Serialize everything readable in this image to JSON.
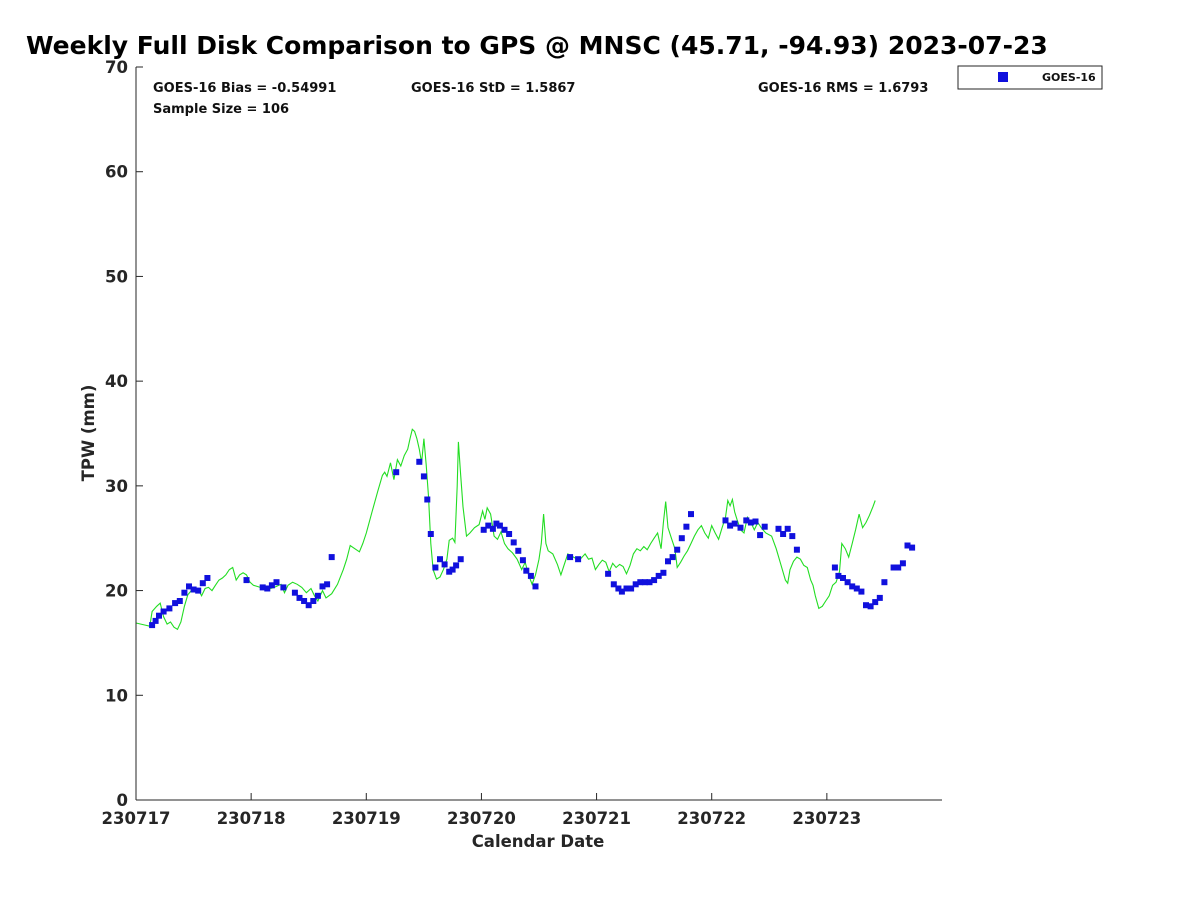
{
  "chart_data": {
    "type": "scatter",
    "title": "Weekly Full Disk Comparison to GPS @ MNSC (45.71, -94.93) 2023-07-23",
    "xlabel": "Calendar Date",
    "ylabel": "TPW (mm)",
    "xlim": [
      0,
      7
    ],
    "ylim": [
      0,
      70
    ],
    "yticks": [
      0,
      10,
      20,
      30,
      40,
      50,
      60,
      70
    ],
    "xtick_labels": [
      "230717",
      "230718",
      "230719",
      "230720",
      "230721",
      "230722",
      "230723"
    ],
    "stats": {
      "bias": "GOES-16 Bias = -0.54991",
      "std": "GOES-16 StD = 1.5867",
      "rms": "GOES-16 RMS = 1.6793",
      "sample": "Sample Size = 106"
    },
    "legend": {
      "label": "GOES-16",
      "position": "outside top-right"
    },
    "colors": {
      "goes": "#1010dd",
      "gps": "#22dd22",
      "axis": "#262626"
    },
    "series": [
      {
        "name": "GPS",
        "style": "line",
        "color": "#22dd22",
        "points": [
          [
            0.0,
            16.9
          ],
          [
            0.08,
            16.7
          ],
          [
            0.12,
            16.6
          ],
          [
            0.14,
            18.0
          ],
          [
            0.18,
            18.5
          ],
          [
            0.21,
            18.8
          ],
          [
            0.24,
            17.5
          ],
          [
            0.27,
            16.8
          ],
          [
            0.3,
            17.0
          ],
          [
            0.33,
            16.5
          ],
          [
            0.36,
            16.3
          ],
          [
            0.39,
            17.0
          ],
          [
            0.42,
            18.5
          ],
          [
            0.45,
            19.6
          ],
          [
            0.48,
            20.0
          ],
          [
            0.51,
            20.3
          ],
          [
            0.54,
            20.1
          ],
          [
            0.57,
            19.5
          ],
          [
            0.6,
            20.2
          ],
          [
            0.63,
            20.3
          ],
          [
            0.66,
            20.0
          ],
          [
            0.69,
            20.5
          ],
          [
            0.72,
            21.0
          ],
          [
            0.75,
            21.2
          ],
          [
            0.78,
            21.5
          ],
          [
            0.81,
            22.0
          ],
          [
            0.84,
            22.2
          ],
          [
            0.87,
            21.0
          ],
          [
            0.9,
            21.5
          ],
          [
            0.93,
            21.7
          ],
          [
            0.96,
            21.5
          ],
          [
            0.99,
            20.8
          ],
          [
            1.02,
            20.5
          ],
          [
            1.08,
            20.3
          ],
          [
            1.14,
            20.1
          ],
          [
            1.2,
            20.3
          ],
          [
            1.26,
            20.6
          ],
          [
            1.29,
            19.8
          ],
          [
            1.32,
            20.5
          ],
          [
            1.36,
            20.8
          ],
          [
            1.4,
            20.6
          ],
          [
            1.44,
            20.3
          ],
          [
            1.48,
            19.8
          ],
          [
            1.52,
            20.2
          ],
          [
            1.55,
            19.5
          ],
          [
            1.58,
            19.0
          ],
          [
            1.62,
            20.0
          ],
          [
            1.65,
            19.3
          ],
          [
            1.7,
            19.7
          ],
          [
            1.75,
            20.6
          ],
          [
            1.8,
            22.0
          ],
          [
            1.83,
            23.0
          ],
          [
            1.86,
            24.3
          ],
          [
            1.9,
            24.0
          ],
          [
            1.94,
            23.7
          ],
          [
            1.97,
            24.5
          ],
          [
            2.0,
            25.5
          ],
          [
            2.05,
            27.5
          ],
          [
            2.1,
            29.5
          ],
          [
            2.14,
            31.0
          ],
          [
            2.16,
            31.3
          ],
          [
            2.18,
            30.9
          ],
          [
            2.21,
            32.2
          ],
          [
            2.24,
            30.6
          ],
          [
            2.27,
            32.5
          ],
          [
            2.3,
            31.9
          ],
          [
            2.33,
            32.9
          ],
          [
            2.36,
            33.5
          ],
          [
            2.38,
            34.5
          ],
          [
            2.4,
            35.4
          ],
          [
            2.42,
            35.2
          ],
          [
            2.44,
            34.5
          ],
          [
            2.46,
            33.5
          ],
          [
            2.48,
            32.2
          ],
          [
            2.5,
            34.5
          ],
          [
            2.52,
            32.0
          ],
          [
            2.54,
            29.0
          ],
          [
            2.56,
            24.5
          ],
          [
            2.58,
            22.0
          ],
          [
            2.61,
            21.1
          ],
          [
            2.64,
            21.3
          ],
          [
            2.67,
            22.0
          ],
          [
            2.7,
            23.0
          ],
          [
            2.72,
            24.8
          ],
          [
            2.75,
            25.0
          ],
          [
            2.77,
            24.6
          ],
          [
            2.79,
            30.0
          ],
          [
            2.8,
            34.2
          ],
          [
            2.82,
            31.0
          ],
          [
            2.84,
            28.0
          ],
          [
            2.87,
            25.2
          ],
          [
            2.9,
            25.5
          ],
          [
            2.94,
            26.0
          ],
          [
            2.98,
            26.3
          ],
          [
            3.01,
            27.6
          ],
          [
            3.03,
            26.8
          ],
          [
            3.05,
            27.9
          ],
          [
            3.08,
            27.3
          ],
          [
            3.11,
            25.2
          ],
          [
            3.14,
            24.9
          ],
          [
            3.17,
            25.6
          ],
          [
            3.2,
            24.5
          ],
          [
            3.23,
            24.0
          ],
          [
            3.27,
            23.6
          ],
          [
            3.31,
            23.0
          ],
          [
            3.35,
            22.0
          ],
          [
            3.38,
            22.7
          ],
          [
            3.41,
            21.5
          ],
          [
            3.44,
            20.6
          ],
          [
            3.47,
            21.5
          ],
          [
            3.5,
            23.0
          ],
          [
            3.52,
            24.5
          ],
          [
            3.54,
            27.3
          ],
          [
            3.56,
            24.5
          ],
          [
            3.58,
            23.8
          ],
          [
            3.62,
            23.5
          ],
          [
            3.66,
            22.5
          ],
          [
            3.69,
            21.5
          ],
          [
            3.72,
            22.5
          ],
          [
            3.75,
            23.5
          ],
          [
            3.8,
            23.2
          ],
          [
            3.85,
            22.9
          ],
          [
            3.9,
            23.5
          ],
          [
            3.93,
            23.0
          ],
          [
            3.96,
            23.1
          ],
          [
            3.99,
            22.0
          ],
          [
            4.02,
            22.5
          ],
          [
            4.05,
            22.9
          ],
          [
            4.08,
            22.7
          ],
          [
            4.11,
            21.8
          ],
          [
            4.14,
            22.6
          ],
          [
            4.17,
            22.2
          ],
          [
            4.2,
            22.5
          ],
          [
            4.23,
            22.3
          ],
          [
            4.26,
            21.6
          ],
          [
            4.29,
            22.4
          ],
          [
            4.32,
            23.5
          ],
          [
            4.35,
            24.0
          ],
          [
            4.38,
            23.8
          ],
          [
            4.41,
            24.2
          ],
          [
            4.44,
            23.9
          ],
          [
            4.47,
            24.5
          ],
          [
            4.5,
            25.0
          ],
          [
            4.53,
            25.5
          ],
          [
            4.56,
            24.0
          ],
          [
            4.58,
            26.5
          ],
          [
            4.6,
            28.5
          ],
          [
            4.62,
            26.0
          ],
          [
            4.65,
            25.0
          ],
          [
            4.68,
            24.0
          ],
          [
            4.7,
            22.2
          ],
          [
            4.73,
            22.7
          ],
          [
            4.76,
            23.3
          ],
          [
            4.79,
            23.8
          ],
          [
            4.82,
            24.5
          ],
          [
            4.85,
            25.2
          ],
          [
            4.88,
            25.8
          ],
          [
            4.91,
            26.2
          ],
          [
            4.94,
            25.5
          ],
          [
            4.97,
            25.0
          ],
          [
            5.0,
            26.2
          ],
          [
            5.03,
            25.5
          ],
          [
            5.06,
            24.9
          ],
          [
            5.09,
            26.0
          ],
          [
            5.12,
            27.0
          ],
          [
            5.14,
            28.6
          ],
          [
            5.16,
            28.1
          ],
          [
            5.18,
            28.7
          ],
          [
            5.2,
            27.5
          ],
          [
            5.22,
            26.8
          ],
          [
            5.25,
            25.8
          ],
          [
            5.28,
            25.5
          ],
          [
            5.31,
            27.0
          ],
          [
            5.34,
            26.5
          ],
          [
            5.37,
            25.8
          ],
          [
            5.4,
            26.5
          ],
          [
            5.43,
            26.0
          ],
          [
            5.47,
            25.5
          ],
          [
            5.52,
            25.2
          ],
          [
            5.56,
            24.0
          ],
          [
            5.6,
            22.5
          ],
          [
            5.64,
            21.0
          ],
          [
            5.66,
            20.7
          ],
          [
            5.68,
            22.0
          ],
          [
            5.71,
            22.8
          ],
          [
            5.74,
            23.2
          ],
          [
            5.77,
            23.0
          ],
          [
            5.8,
            22.4
          ],
          [
            5.83,
            22.2
          ],
          [
            5.86,
            21.0
          ],
          [
            5.88,
            20.5
          ],
          [
            5.9,
            19.5
          ],
          [
            5.93,
            18.3
          ],
          [
            5.96,
            18.5
          ],
          [
            5.99,
            19.0
          ],
          [
            6.02,
            19.5
          ],
          [
            6.05,
            20.5
          ],
          [
            6.08,
            20.8
          ],
          [
            6.11,
            21.8
          ],
          [
            6.13,
            24.5
          ],
          [
            6.16,
            24.0
          ],
          [
            6.19,
            23.2
          ],
          [
            6.22,
            24.5
          ],
          [
            6.25,
            25.8
          ],
          [
            6.28,
            27.3
          ],
          [
            6.31,
            26.0
          ],
          [
            6.34,
            26.5
          ],
          [
            6.37,
            27.2
          ],
          [
            6.4,
            28.0
          ],
          [
            6.42,
            28.6
          ]
        ]
      },
      {
        "name": "GOES-16",
        "style": "marker-square",
        "color": "#1010dd",
        "points": [
          [
            0.14,
            16.7
          ],
          [
            0.17,
            17.1
          ],
          [
            0.2,
            17.6
          ],
          [
            0.24,
            18.0
          ],
          [
            0.29,
            18.3
          ],
          [
            0.34,
            18.8
          ],
          [
            0.38,
            19.0
          ],
          [
            0.42,
            19.8
          ],
          [
            0.46,
            20.4
          ],
          [
            0.5,
            20.1
          ],
          [
            0.54,
            20.0
          ],
          [
            0.58,
            20.7
          ],
          [
            0.62,
            21.2
          ],
          [
            0.96,
            21.0
          ],
          [
            1.1,
            20.3
          ],
          [
            1.14,
            20.2
          ],
          [
            1.18,
            20.5
          ],
          [
            1.22,
            20.8
          ],
          [
            1.28,
            20.3
          ],
          [
            1.38,
            19.8
          ],
          [
            1.42,
            19.3
          ],
          [
            1.46,
            19.0
          ],
          [
            1.5,
            18.6
          ],
          [
            1.54,
            19.0
          ],
          [
            1.58,
            19.5
          ],
          [
            1.62,
            20.4
          ],
          [
            1.66,
            20.6
          ],
          [
            1.7,
            23.2
          ],
          [
            2.26,
            31.3
          ],
          [
            2.46,
            32.3
          ],
          [
            2.5,
            30.9
          ],
          [
            2.53,
            28.7
          ],
          [
            2.56,
            25.4
          ],
          [
            2.6,
            22.2
          ],
          [
            2.64,
            23.0
          ],
          [
            2.68,
            22.5
          ],
          [
            2.72,
            21.8
          ],
          [
            2.75,
            22.0
          ],
          [
            2.78,
            22.4
          ],
          [
            2.82,
            23.0
          ],
          [
            3.02,
            25.8
          ],
          [
            3.06,
            26.2
          ],
          [
            3.1,
            25.9
          ],
          [
            3.13,
            26.4
          ],
          [
            3.16,
            26.2
          ],
          [
            3.2,
            25.8
          ],
          [
            3.24,
            25.4
          ],
          [
            3.28,
            24.6
          ],
          [
            3.32,
            23.8
          ],
          [
            3.36,
            22.9
          ],
          [
            3.39,
            21.9
          ],
          [
            3.43,
            21.4
          ],
          [
            3.47,
            20.4
          ],
          [
            3.77,
            23.2
          ],
          [
            3.84,
            23.0
          ],
          [
            4.1,
            21.6
          ],
          [
            4.15,
            20.6
          ],
          [
            4.19,
            20.2
          ],
          [
            4.22,
            19.9
          ],
          [
            4.26,
            20.2
          ],
          [
            4.3,
            20.2
          ],
          [
            4.34,
            20.6
          ],
          [
            4.38,
            20.8
          ],
          [
            4.42,
            20.8
          ],
          [
            4.46,
            20.8
          ],
          [
            4.5,
            21.0
          ],
          [
            4.54,
            21.4
          ],
          [
            4.58,
            21.7
          ],
          [
            4.62,
            22.8
          ],
          [
            4.66,
            23.2
          ],
          [
            4.7,
            23.9
          ],
          [
            4.74,
            25.0
          ],
          [
            4.78,
            26.1
          ],
          [
            4.82,
            27.3
          ],
          [
            5.12,
            26.7
          ],
          [
            5.16,
            26.2
          ],
          [
            5.2,
            26.4
          ],
          [
            5.25,
            26.0
          ],
          [
            5.3,
            26.7
          ],
          [
            5.34,
            26.5
          ],
          [
            5.38,
            26.6
          ],
          [
            5.42,
            25.3
          ],
          [
            5.46,
            26.1
          ],
          [
            5.58,
            25.9
          ],
          [
            5.62,
            25.4
          ],
          [
            5.66,
            25.9
          ],
          [
            5.7,
            25.2
          ],
          [
            5.74,
            23.9
          ],
          [
            6.07,
            22.2
          ],
          [
            6.1,
            21.4
          ],
          [
            6.14,
            21.2
          ],
          [
            6.18,
            20.8
          ],
          [
            6.22,
            20.4
          ],
          [
            6.26,
            20.2
          ],
          [
            6.3,
            19.9
          ],
          [
            6.34,
            18.6
          ],
          [
            6.38,
            18.5
          ],
          [
            6.42,
            18.9
          ],
          [
            6.46,
            19.3
          ],
          [
            6.5,
            20.8
          ],
          [
            6.58,
            22.2
          ],
          [
            6.62,
            22.2
          ],
          [
            6.66,
            22.6
          ],
          [
            6.7,
            24.3
          ],
          [
            6.74,
            24.1
          ]
        ]
      }
    ]
  }
}
